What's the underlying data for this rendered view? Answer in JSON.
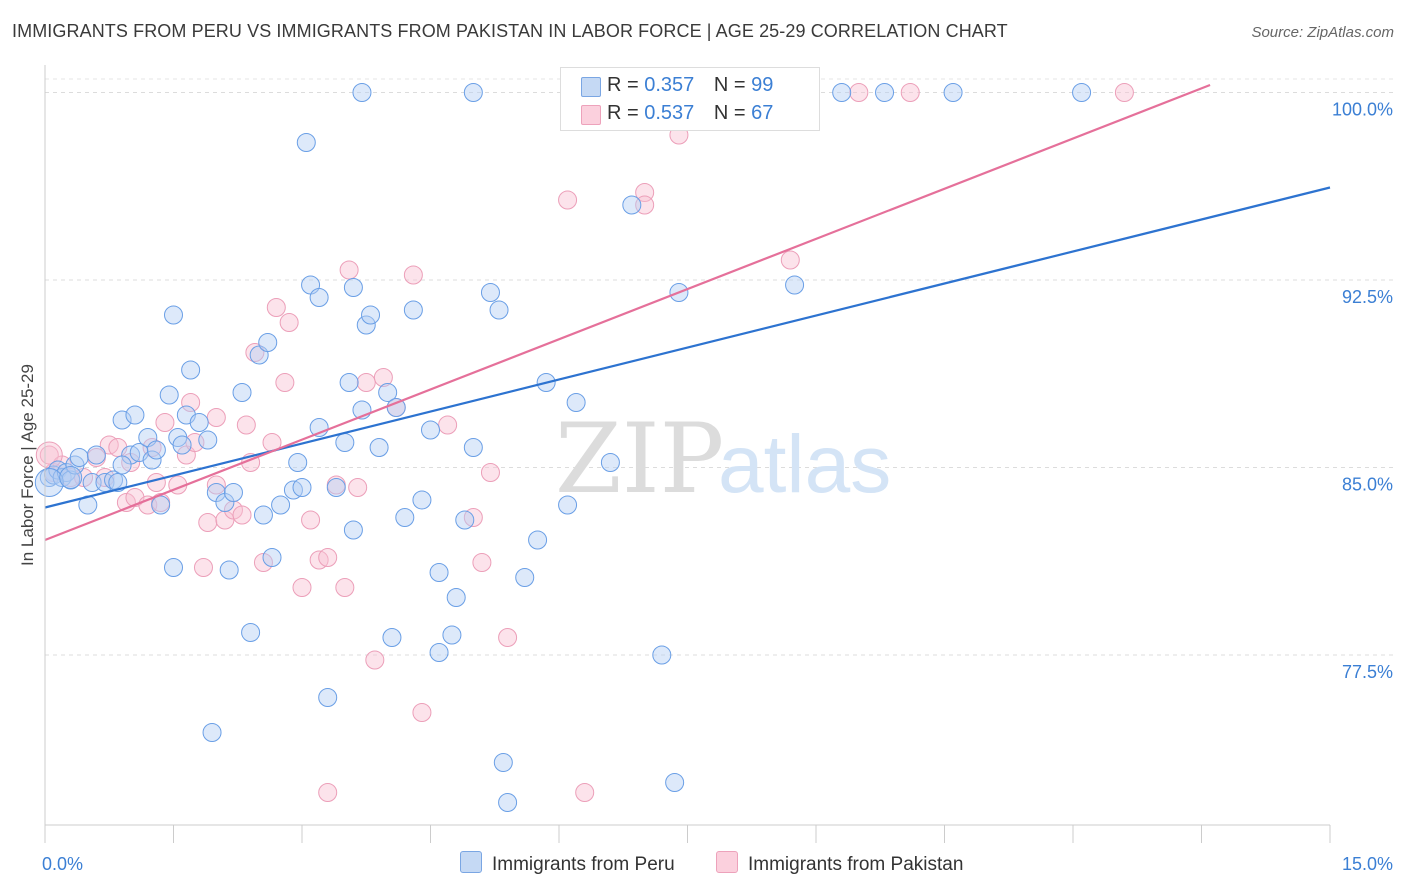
{
  "title": "IMMIGRANTS FROM PERU VS IMMIGRANTS FROM PAKISTAN IN LABOR FORCE | AGE 25-29 CORRELATION CHART",
  "source": "Source: ZipAtlas.com",
  "watermark": {
    "zip": "ZIP",
    "atlas": "atlas"
  },
  "legend_top": [
    {
      "r_label": "R = ",
      "r_value": "0.357",
      "n_label": "N = ",
      "n_value": "99"
    },
    {
      "r_label": "R = ",
      "r_value": "0.537",
      "n_label": "N = ",
      "n_value": "67"
    }
  ],
  "chart_data": {
    "type": "scatter",
    "title": "IMMIGRANTS FROM PERU VS IMMIGRANTS FROM PAKISTAN IN LABOR FORCE | AGE 25-29 CORRELATION CHART",
    "xlabel": "",
    "ylabel": "In Labor Force | Age 25-29",
    "xlim": [
      0,
      15
    ],
    "ylim": [
      70.7,
      101.1
    ],
    "x_tick_labels": [
      "0.0%",
      "15.0%"
    ],
    "y_ticks": [
      77.5,
      85.0,
      92.5,
      100.0
    ],
    "y_tick_labels": [
      "77.5%",
      "85.0%",
      "92.5%",
      "100.0%"
    ],
    "grid": "horizontal-dashed",
    "legend_position": "bottom-center",
    "colors": {
      "peru": "#6a9fe6",
      "peru_line": "#2d73d0",
      "pakistan": "#f1a3be",
      "pakistan_line": "#e5709a",
      "tick_label": "#3b7fd4"
    },
    "series": [
      {
        "name": "Immigrants from Peru",
        "r": 0.357,
        "n": 99,
        "trend": {
          "x": [
            0,
            15
          ],
          "y": [
            83.4,
            96.2
          ]
        },
        "x": [
          0.05,
          0.1,
          0.15,
          0.2,
          0.25,
          0.3,
          0.35,
          0.4,
          0.5,
          0.55,
          0.6,
          0.7,
          0.8,
          0.85,
          0.9,
          1.0,
          1.05,
          1.1,
          1.2,
          1.25,
          1.3,
          1.35,
          1.45,
          1.5,
          1.55,
          1.6,
          1.65,
          1.7,
          1.8,
          1.9,
          2.0,
          2.1,
          2.15,
          2.3,
          2.4,
          2.5,
          2.55,
          2.6,
          2.65,
          2.9,
          2.95,
          3.05,
          3.1,
          3.2,
          3.3,
          3.4,
          3.5,
          3.55,
          3.6,
          3.7,
          3.75,
          3.8,
          3.9,
          4.0,
          4.05,
          4.2,
          4.3,
          4.4,
          4.5,
          4.6,
          4.75,
          4.8,
          4.9,
          5.0,
          5.2,
          5.35,
          5.4,
          5.6,
          5.75,
          5.85,
          6.2,
          6.6,
          6.85,
          7.0,
          7.2,
          7.35,
          7.4,
          8.1,
          8.5,
          8.75,
          9.3,
          9.8,
          10.6,
          12.1,
          3.7,
          5.3,
          6.5,
          2.2,
          1.95,
          3.2,
          1.5,
          0.9,
          4.1,
          2.75,
          6.1,
          3.0,
          5.0,
          4.6,
          3.6
        ],
        "y": [
          84.6,
          84.7,
          84.9,
          84.6,
          84.8,
          84.5,
          85.1,
          85.4,
          83.5,
          84.4,
          85.5,
          84.4,
          84.5,
          84.4,
          86.9,
          85.5,
          87.1,
          85.6,
          86.2,
          85.3,
          85.7,
          83.5,
          87.9,
          81.0,
          86.2,
          85.9,
          87.1,
          88.9,
          86.8,
          86.1,
          84.0,
          83.6,
          80.9,
          88.0,
          78.4,
          89.5,
          83.1,
          90.0,
          81.4,
          84.1,
          85.2,
          98.0,
          92.3,
          91.8,
          75.8,
          84.2,
          86.0,
          88.4,
          82.5,
          87.3,
          90.7,
          91.1,
          85.8,
          88.0,
          78.2,
          83.0,
          91.3,
          83.7,
          86.5,
          77.6,
          78.3,
          79.8,
          82.9,
          85.8,
          92.0,
          73.2,
          71.6,
          80.6,
          82.1,
          88.4,
          87.6,
          85.2,
          95.5,
          100.0,
          77.5,
          72.4,
          92.0,
          100.0,
          100.0,
          92.3,
          100.0,
          100.0,
          100.0,
          100.0,
          100.0,
          91.3,
          100.0,
          84.0,
          74.4,
          86.6,
          91.1,
          85.1,
          87.4,
          83.5,
          83.5,
          84.2,
          100.0,
          80.8,
          92.2
        ],
        "sizes": [
          9,
          9,
          9,
          9,
          9,
          9,
          9,
          9,
          9,
          9,
          9,
          9,
          9,
          9,
          9,
          9,
          9,
          9,
          9,
          9,
          9,
          9,
          9,
          9,
          9,
          9,
          9,
          9,
          9,
          9,
          9,
          9,
          9,
          9,
          9,
          9,
          9,
          9,
          9,
          9,
          9,
          9,
          9,
          9,
          9,
          9,
          9,
          9,
          9,
          9,
          9,
          9,
          9,
          9,
          9,
          9,
          9,
          9,
          9,
          9,
          9,
          9,
          9,
          9,
          9,
          9,
          9,
          9,
          9,
          9,
          9,
          9,
          9,
          9,
          9,
          9,
          9,
          9,
          9,
          9,
          9,
          9,
          9,
          9,
          9,
          9,
          9,
          9,
          9,
          9,
          9,
          9,
          9,
          9,
          9,
          9,
          9,
          9,
          9
        ],
        "big_points": [
          {
            "x": 0.05,
            "y": 84.4,
            "size": 14
          },
          {
            "x": 0.3,
            "y": 84.6,
            "size": 11
          }
        ]
      },
      {
        "name": "Immigrants from Pakistan",
        "r": 0.537,
        "n": 67,
        "trend": {
          "x": [
            0,
            13.6
          ],
          "y": [
            82.1,
            100.3
          ]
        },
        "x": [
          0.05,
          0.1,
          0.2,
          0.3,
          0.45,
          0.6,
          0.75,
          0.85,
          0.95,
          1.05,
          1.2,
          1.3,
          1.35,
          1.4,
          1.55,
          1.65,
          1.75,
          1.85,
          1.9,
          2.0,
          2.1,
          2.2,
          2.35,
          2.45,
          2.55,
          2.7,
          2.85,
          3.0,
          3.1,
          3.2,
          3.3,
          3.55,
          3.65,
          3.75,
          3.85,
          3.95,
          4.3,
          4.4,
          4.7,
          5.1,
          5.2,
          5.4,
          6.1,
          6.3,
          7.0,
          7.0,
          7.3,
          7.4,
          8.0,
          8.7,
          9.5,
          10.1,
          12.6,
          1.0,
          1.7,
          2.0,
          2.4,
          2.8,
          3.5,
          0.7,
          1.25,
          2.3,
          3.4,
          3.3,
          2.65,
          4.1,
          5.0
        ],
        "y": [
          85.5,
          84.8,
          85.1,
          84.6,
          84.6,
          85.4,
          85.9,
          85.8,
          83.6,
          83.8,
          83.5,
          84.4,
          83.6,
          86.8,
          84.3,
          85.5,
          86.0,
          81.0,
          82.8,
          87.0,
          82.9,
          83.3,
          86.7,
          89.6,
          81.2,
          91.4,
          90.8,
          80.2,
          82.9,
          81.3,
          72.0,
          92.9,
          84.2,
          88.4,
          77.3,
          88.6,
          92.7,
          75.2,
          86.7,
          81.2,
          84.8,
          78.2,
          95.7,
          72.0,
          96.0,
          95.5,
          100.0,
          98.3,
          100.0,
          93.3,
          100.0,
          100.0,
          100.0,
          85.2,
          87.6,
          84.3,
          85.2,
          88.4,
          80.2,
          84.6,
          85.8,
          83.1,
          84.3,
          81.4,
          86.0,
          87.4,
          83.0
        ],
        "sizes": [
          9,
          9,
          9,
          9,
          9,
          9,
          9,
          9,
          9,
          9,
          9,
          9,
          9,
          9,
          9,
          9,
          9,
          9,
          9,
          9,
          9,
          9,
          9,
          9,
          9,
          9,
          9,
          9,
          9,
          9,
          9,
          9,
          9,
          9,
          9,
          9,
          9,
          9,
          9,
          9,
          9,
          9,
          9,
          9,
          9,
          9,
          9,
          9,
          9,
          9,
          9,
          9,
          9,
          9,
          9,
          9,
          9,
          9,
          9,
          9,
          9,
          9,
          9,
          9,
          9,
          9,
          9
        ],
        "big_points": [
          {
            "x": 0.05,
            "y": 85.5,
            "size": 13
          }
        ]
      }
    ]
  }
}
